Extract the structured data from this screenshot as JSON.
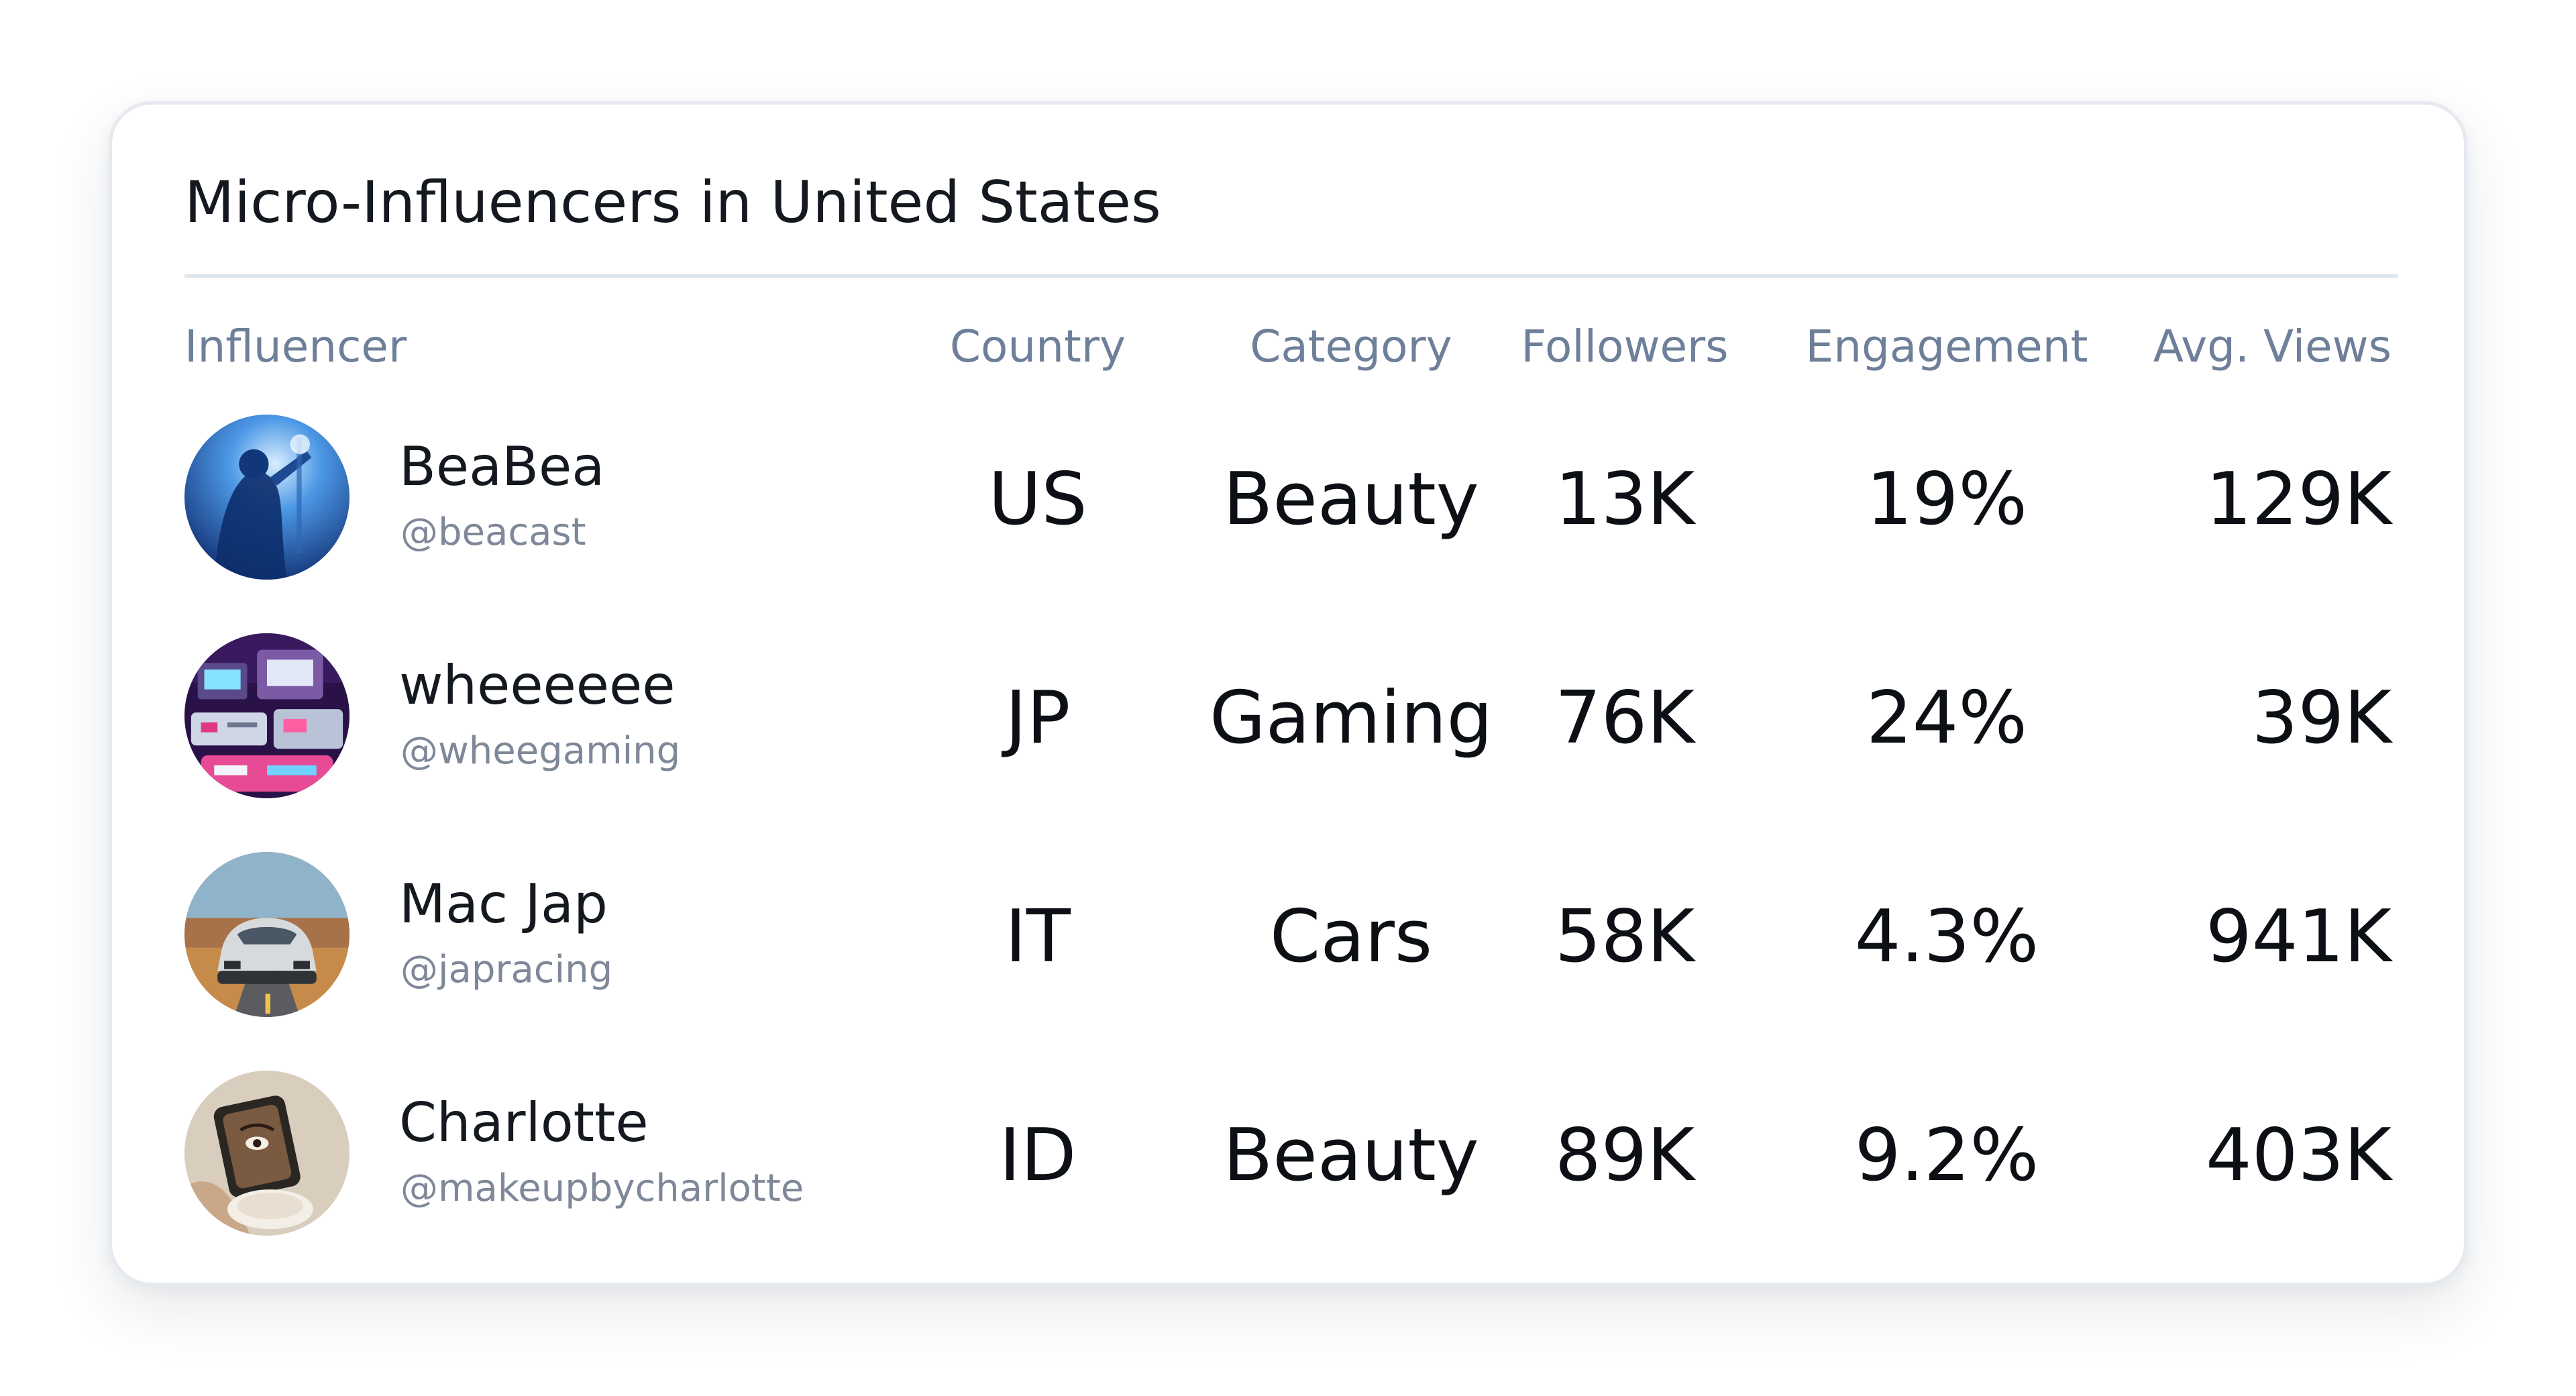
{
  "card": {
    "title": "Micro-Influencers in United States"
  },
  "columns": {
    "influencer": "Influencer",
    "country": "Country",
    "category": "Category",
    "followers": "Followers",
    "engagement": "Engagement",
    "avg_views": "Avg. Views"
  },
  "rows": [
    {
      "name": "BeaBea",
      "handle": "@beacast",
      "country": "US",
      "category": "Beauty",
      "followers": "13K",
      "engagement": "19%",
      "avg_views": "129K",
      "avatar_icon": "concert-singer-photo-icon",
      "avatar_colors": [
        "#0d2a6e",
        "#3e86d8",
        "#b9dcff"
      ]
    },
    {
      "name": "wheeeeee",
      "handle": "@wheegaming",
      "country": "JP",
      "category": "Gaming",
      "followers": "76K",
      "engagement": "24%",
      "avg_views": "39K",
      "avatar_icon": "retro-consoles-photo-icon",
      "avatar_colors": [
        "#2a1248",
        "#e0397e",
        "#6fd2ff"
      ]
    },
    {
      "name": "Mac Jap",
      "handle": "@japracing",
      "country": "IT",
      "category": "Cars",
      "followers": "58K",
      "engagement": "4.3%",
      "avg_views": "941K",
      "avatar_icon": "race-car-photo-icon",
      "avatar_colors": [
        "#7aa0b8",
        "#d0d6da",
        "#c68b4b"
      ]
    },
    {
      "name": "Charlotte",
      "handle": "@makeupbycharlotte",
      "country": "ID",
      "category": "Beauty",
      "followers": "89K",
      "engagement": "9.2%",
      "avg_views": "403K",
      "avatar_icon": "makeup-mirror-photo-icon",
      "avatar_colors": [
        "#d9cdbd",
        "#6b4a32",
        "#f3eee6"
      ]
    }
  ]
}
